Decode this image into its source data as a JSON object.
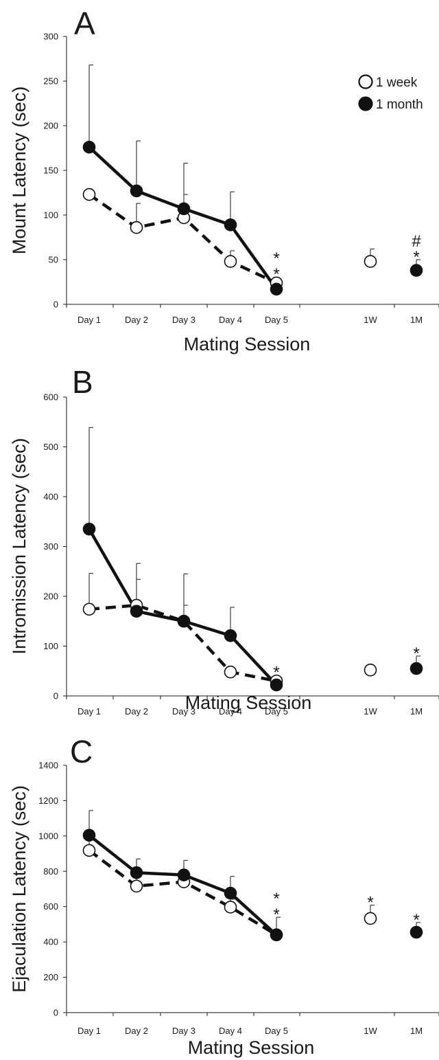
{
  "chart_data": [
    {
      "type": "line",
      "panel_label": "A",
      "ylabel": "Mount Latency (sec)",
      "xlabel": "Mating Session",
      "categories": [
        "Day 1",
        "Day 2",
        "Day 3",
        "Day 4",
        "Day 5",
        "1W",
        "1M"
      ],
      "ylim": [
        0,
        300
      ],
      "yticks": [
        "0",
        "50",
        "100",
        "150",
        "200",
        "250",
        "300"
      ],
      "grid": false,
      "legend": {
        "position": "top-right",
        "entries": [
          {
            "label": "1 week",
            "marker": "open-circle"
          },
          {
            "label": "1 month",
            "marker": "filled-circle"
          }
        ]
      },
      "series": [
        {
          "name": "1 week",
          "marker": "open",
          "line": "dashed",
          "values": [
            123,
            86,
            97,
            48,
            24,
            48,
            null
          ],
          "errors": [
            null,
            27,
            26,
            12,
            null,
            14,
            null
          ]
        },
        {
          "name": "1 month",
          "marker": "filled",
          "line": "solid",
          "values": [
            176,
            127,
            107,
            89,
            17,
            null,
            38
          ],
          "errors": [
            92,
            56,
            51,
            37,
            null,
            null,
            12
          ]
        }
      ],
      "annotations": [
        {
          "category": "Day 5",
          "lines": [
            "*",
            "*"
          ]
        },
        {
          "category": "1M",
          "lines": [
            "#",
            "*"
          ]
        }
      ]
    },
    {
      "type": "line",
      "panel_label": "B",
      "ylabel": "Intromission Latency (sec)",
      "xlabel": "Mating Session",
      "categories": [
        "Day 1",
        "Day 2",
        "Day 3",
        "Day 4",
        "Day 5",
        "1W",
        "1M"
      ],
      "ylim": [
        0,
        600
      ],
      "yticks": [
        "0",
        "100",
        "200",
        "300",
        "400",
        "500",
        "600"
      ],
      "grid": false,
      "series": [
        {
          "name": "1 week",
          "marker": "open",
          "line": "dashed",
          "values": [
            174,
            182,
            150,
            48,
            30,
            52,
            null
          ],
          "errors": [
            72,
            52,
            32,
            null,
            null,
            6,
            null
          ]
        },
        {
          "name": "1 month",
          "marker": "filled",
          "line": "solid",
          "values": [
            335,
            170,
            150,
            121,
            22,
            null,
            55
          ],
          "errors": [
            204,
            96,
            95,
            57,
            null,
            null,
            25
          ]
        }
      ],
      "annotations": [
        {
          "category": "Day 5",
          "lines": [
            "*"
          ]
        },
        {
          "category": "1M",
          "lines": [
            "*"
          ]
        }
      ]
    },
    {
      "type": "line",
      "panel_label": "C",
      "ylabel": "Ejaculation Latency (sec)",
      "xlabel": "Mating Session",
      "categories": [
        "Day 1",
        "Day 2",
        "Day 3",
        "Day 4",
        "Day 5",
        "1W",
        "1M"
      ],
      "ylim": [
        0,
        1400
      ],
      "yticks": [
        "0",
        "200",
        "400",
        "600",
        "800",
        "1000",
        "1200",
        "1400"
      ],
      "grid": false,
      "series": [
        {
          "name": "1 week",
          "marker": "open",
          "line": "dashed",
          "values": [
            918,
            716,
            740,
            597,
            440,
            533,
            null
          ],
          "errors": [
            80,
            50,
            60,
            45,
            100,
            75,
            null
          ]
        },
        {
          "name": "1 month",
          "marker": "filled",
          "line": "solid",
          "values": [
            1004,
            792,
            779,
            676,
            440,
            null,
            455
          ],
          "errors": [
            140,
            78,
            83,
            95,
            null,
            null,
            55
          ]
        }
      ],
      "annotations": [
        {
          "category": "Day 5",
          "lines": [
            "*",
            "*"
          ]
        },
        {
          "category": "1W",
          "lines": [
            "*"
          ]
        },
        {
          "category": "1M",
          "lines": [
            "*"
          ]
        }
      ]
    }
  ]
}
